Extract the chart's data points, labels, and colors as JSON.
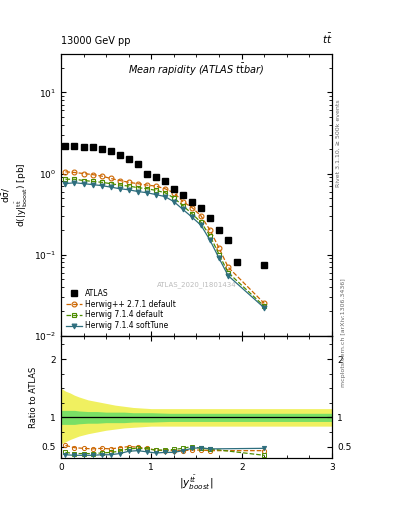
{
  "title_top": "13000 GeV pp",
  "title_top_right": "tt̅",
  "title_inner": "Mean rapidity (ATLAS t̅t̅bar)",
  "watermark": "ATLAS_2020_I1801434",
  "right_label_top": "Rivet 3.1.10, ≥ 500k events",
  "right_label_bottom": "mcplots.cern.ch [arXiv:1306.3436]",
  "xlabel": "|y^{tt}_{boost}|",
  "xlim": [
    0,
    3
  ],
  "ylim_main": [
    0.01,
    30
  ],
  "ylim_ratio": [
    0.3,
    2.4
  ],
  "atlas_x": [
    0.05,
    0.15,
    0.25,
    0.35,
    0.45,
    0.55,
    0.65,
    0.75,
    0.85,
    0.95,
    1.05,
    1.15,
    1.25,
    1.35,
    1.45,
    1.55,
    1.65,
    1.75,
    1.85,
    1.95,
    2.25
  ],
  "atlas_y": [
    2.2,
    2.2,
    2.15,
    2.1,
    2.0,
    1.9,
    1.7,
    1.5,
    1.3,
    1.0,
    0.9,
    0.8,
    0.65,
    0.55,
    0.45,
    0.38,
    0.28,
    0.2,
    0.15,
    0.08,
    0.075
  ],
  "hw271_x": [
    0.05,
    0.15,
    0.25,
    0.35,
    0.45,
    0.55,
    0.65,
    0.75,
    0.85,
    0.95,
    1.05,
    1.15,
    1.25,
    1.35,
    1.45,
    1.55,
    1.65,
    1.75,
    1.85,
    2.25
  ],
  "hw271_y": [
    1.05,
    1.03,
    1.0,
    0.97,
    0.93,
    0.87,
    0.82,
    0.78,
    0.75,
    0.72,
    0.7,
    0.65,
    0.58,
    0.45,
    0.38,
    0.3,
    0.2,
    0.12,
    0.07,
    0.025
  ],
  "hw714d_x": [
    0.05,
    0.15,
    0.25,
    0.35,
    0.45,
    0.55,
    0.65,
    0.75,
    0.85,
    0.95,
    1.05,
    1.15,
    1.25,
    1.35,
    1.45,
    1.55,
    1.65,
    1.75,
    1.85,
    2.25
  ],
  "hw714d_y": [
    0.85,
    0.85,
    0.82,
    0.8,
    0.78,
    0.75,
    0.72,
    0.7,
    0.67,
    0.65,
    0.62,
    0.58,
    0.5,
    0.4,
    0.32,
    0.25,
    0.17,
    0.1,
    0.06,
    0.023
  ],
  "hw714s_x": [
    0.05,
    0.15,
    0.25,
    0.35,
    0.45,
    0.55,
    0.65,
    0.75,
    0.85,
    0.95,
    1.05,
    1.15,
    1.25,
    1.35,
    1.45,
    1.55,
    1.65,
    1.75,
    1.85,
    2.25
  ],
  "hw714s_y": [
    0.75,
    0.77,
    0.75,
    0.73,
    0.71,
    0.68,
    0.65,
    0.63,
    0.6,
    0.58,
    0.55,
    0.52,
    0.45,
    0.36,
    0.29,
    0.23,
    0.15,
    0.09,
    0.055,
    0.022
  ],
  "ratio_hw271_x": [
    0.05,
    0.15,
    0.25,
    0.35,
    0.45,
    0.55,
    0.65,
    0.75,
    0.85,
    0.95,
    1.05,
    1.15,
    1.25,
    1.35,
    1.45,
    1.55,
    1.65,
    2.25
  ],
  "ratio_hw271_y": [
    0.52,
    0.48,
    0.47,
    0.46,
    0.47,
    0.46,
    0.48,
    0.5,
    0.49,
    0.47,
    0.44,
    0.43,
    0.43,
    0.43,
    0.44,
    0.44,
    0.43,
    0.43
  ],
  "ratio_hw714d_x": [
    0.05,
    0.15,
    0.25,
    0.35,
    0.45,
    0.55,
    0.65,
    0.75,
    0.85,
    0.95,
    1.05,
    1.15,
    1.25,
    1.35,
    1.45,
    1.55,
    1.65,
    2.25
  ],
  "ratio_hw714d_y": [
    0.4,
    0.38,
    0.38,
    0.38,
    0.39,
    0.4,
    0.42,
    0.46,
    0.47,
    0.46,
    0.44,
    0.44,
    0.45,
    0.47,
    0.5,
    0.47,
    0.46,
    0.35
  ],
  "ratio_hw714s_x": [
    0.05,
    0.15,
    0.25,
    0.35,
    0.45,
    0.55,
    0.65,
    0.75,
    0.85,
    0.95,
    1.05,
    1.15,
    1.25,
    1.35,
    1.45,
    1.55,
    1.65,
    2.25
  ],
  "ratio_hw714s_y": [
    0.36,
    0.35,
    0.35,
    0.35,
    0.36,
    0.36,
    0.38,
    0.42,
    0.43,
    0.41,
    0.39,
    0.4,
    0.4,
    0.43,
    0.47,
    0.48,
    0.46,
    0.47
  ],
  "band_x": [
    0.0,
    0.05,
    0.1,
    0.15,
    0.2,
    0.3,
    0.4,
    0.5,
    0.6,
    0.7,
    0.8,
    0.9,
    1.0,
    1.2,
    1.4,
    1.6,
    1.8,
    2.0,
    2.5,
    3.0
  ],
  "band_green_lo": [
    0.88,
    0.88,
    0.88,
    0.88,
    0.89,
    0.9,
    0.9,
    0.91,
    0.91,
    0.91,
    0.92,
    0.92,
    0.92,
    0.93,
    0.93,
    0.93,
    0.93,
    0.93,
    0.93,
    0.93
  ],
  "band_green_hi": [
    1.12,
    1.12,
    1.12,
    1.12,
    1.11,
    1.1,
    1.1,
    1.09,
    1.09,
    1.09,
    1.08,
    1.08,
    1.08,
    1.07,
    1.07,
    1.07,
    1.07,
    1.07,
    1.07,
    1.07
  ],
  "band_yellow_lo": [
    0.55,
    0.58,
    0.62,
    0.65,
    0.68,
    0.72,
    0.75,
    0.78,
    0.8,
    0.82,
    0.83,
    0.84,
    0.85,
    0.85,
    0.85,
    0.85,
    0.85,
    0.85,
    0.85,
    0.85
  ],
  "band_yellow_hi": [
    1.5,
    1.45,
    1.42,
    1.38,
    1.35,
    1.3,
    1.27,
    1.24,
    1.21,
    1.19,
    1.17,
    1.16,
    1.15,
    1.15,
    1.15,
    1.15,
    1.15,
    1.15,
    1.15,
    1.15
  ],
  "color_atlas": "#000000",
  "color_hw271": "#cc6600",
  "color_hw714d": "#4d8c00",
  "color_hw714s": "#2e6e7e",
  "color_green_band": "#66dd66",
  "color_yellow_band": "#eeee44",
  "background_color": "#ffffff"
}
